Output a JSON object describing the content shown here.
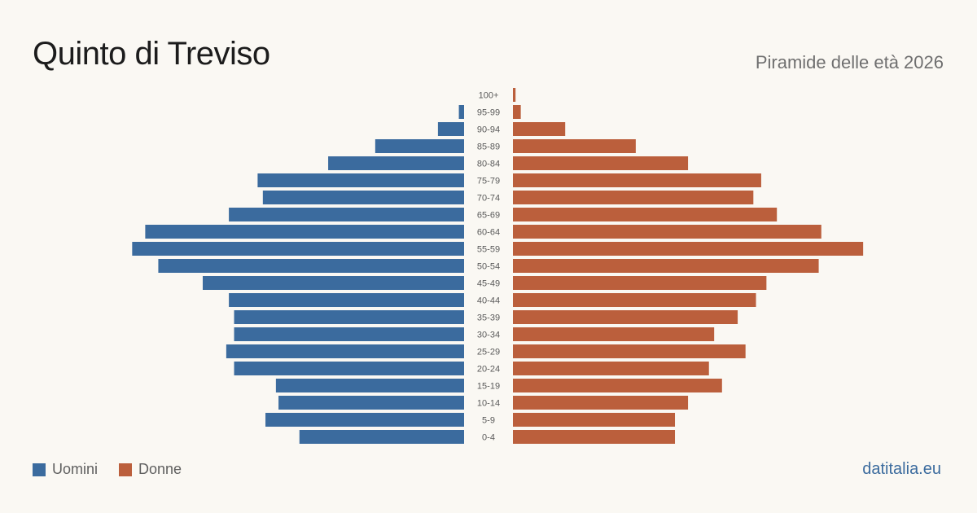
{
  "header": {
    "title": "Quinto di Treviso",
    "subtitle": "Piramide delle età 2026"
  },
  "legend": {
    "men_label": "Uomini",
    "women_label": "Donne"
  },
  "brand": "datitalia.eu",
  "colors": {
    "men": "#3b6b9e",
    "women": "#bb5f3c",
    "brand": "#3b6b9e"
  },
  "chart_data": {
    "type": "bar",
    "orientation": "horizontal-pyramid",
    "categories": [
      "100+",
      "95-99",
      "90-94",
      "85-89",
      "80-84",
      "75-79",
      "70-74",
      "65-69",
      "60-64",
      "55-59",
      "50-54",
      "45-49",
      "40-44",
      "35-39",
      "30-34",
      "25-29",
      "20-24",
      "15-19",
      "10-14",
      "5-9",
      "0-4"
    ],
    "series": [
      {
        "name": "Uomini",
        "values": [
          0,
          2,
          10,
          34,
          52,
          79,
          77,
          90,
          122,
          127,
          117,
          100,
          90,
          88,
          88,
          91,
          88,
          72,
          71,
          76,
          63
        ]
      },
      {
        "name": "Donne",
        "values": [
          1,
          3,
          20,
          47,
          67,
          95,
          92,
          101,
          118,
          134,
          117,
          97,
          93,
          86,
          77,
          89,
          75,
          80,
          67,
          62,
          62
        ]
      }
    ],
    "legend_position": "bottom-left",
    "grid": false
  }
}
